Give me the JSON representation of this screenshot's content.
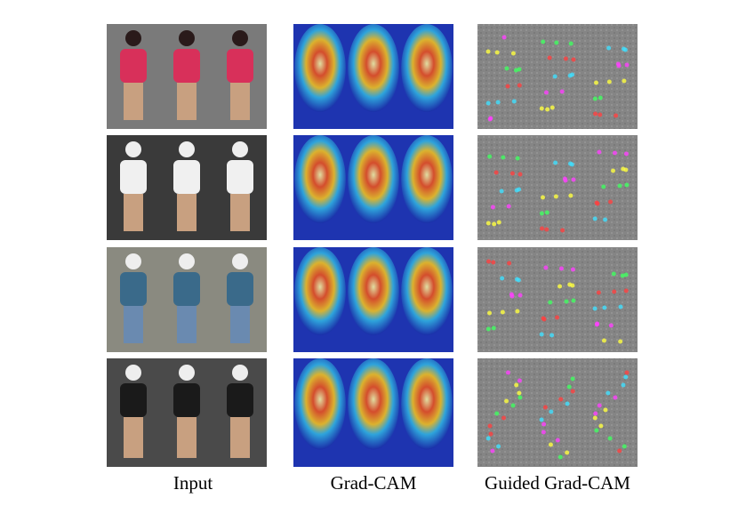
{
  "figure": {
    "columns": [
      {
        "label": "Input"
      },
      {
        "label": "Grad-CAM"
      },
      {
        "label": "Guided Grad-CAM"
      }
    ]
  }
}
